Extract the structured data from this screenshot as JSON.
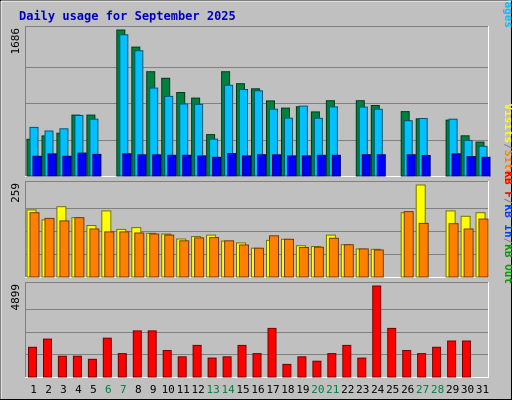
{
  "chart_data": {
    "type": "bar",
    "title": "Daily usage for September 2025",
    "categories": [
      "1",
      "2",
      "3",
      "4",
      "5",
      "6",
      "7",
      "8",
      "9",
      "10",
      "11",
      "12",
      "13",
      "14",
      "15",
      "16",
      "17",
      "18",
      "19",
      "20",
      "21",
      "22",
      "23",
      "24",
      "25",
      "26",
      "27",
      "28",
      "29",
      "30",
      "31"
    ],
    "weekend_days": [
      "6",
      "7",
      "13",
      "14",
      "20",
      "21",
      "27",
      "28"
    ],
    "panels": [
      {
        "id": "hits",
        "max_label": "1686",
        "ylim": [
          0,
          1686
        ],
        "right_labels": [
          {
            "text": "Hits",
            "color": "#008040"
          },
          {
            "text": "/",
            "color": "#808080"
          },
          {
            "text": "Files",
            "color": "#0040ff"
          },
          {
            "text": "/",
            "color": "#808080"
          },
          {
            "text": "Pages",
            "color": "#00c0ff"
          }
        ],
        "series": [
          {
            "name": "Hits",
            "color": "#008040",
            "values": [
              424,
              463,
              494,
              703,
              703,
              0,
              1686,
              1488,
              1205,
              1128,
              964,
              900,
              478,
              1205,
              1066,
              1007,
              867,
              784,
              800,
              740,
              869,
              0,
              869,
              814,
              0,
              744,
              660,
              0,
              646,
              464,
              392
            ]
          },
          {
            "name": "Files",
            "color": "#00c0ff",
            "values": [
              561,
              520,
              545,
              699,
              656,
              0,
              1631,
              1447,
              1015,
              919,
              832,
              827,
              425,
              1047,
              999,
              984,
              771,
              667,
              807,
              666,
              798,
              0,
              796,
              770,
              0,
              639,
              664,
              0,
              656,
              411,
              342
            ]
          },
          {
            "name": "Pages",
            "color": "#0000ff",
            "values": [
              228,
              256,
              228,
              265,
              249,
              0,
              256,
              245,
              245,
              239,
              239,
              232,
              216,
              260,
              232,
              246,
              245,
              232,
              232,
              239,
              239,
              0,
              246,
              246,
              0,
              246,
              237,
              0,
              256,
              224,
              216
            ]
          }
        ]
      },
      {
        "id": "visits",
        "max_label": "259",
        "ylim": [
          0,
          259
        ],
        "right_labels": [
          {
            "text": "Visits",
            "color": "#ffff00"
          },
          {
            "text": "/",
            "color": "#808080"
          },
          {
            "text": "Sites",
            "color": "#ff8000"
          }
        ],
        "series": [
          {
            "name": "Visits",
            "color": "#ffff00",
            "values": [
              189,
              161,
              198,
              167,
              145,
              186,
              134,
              139,
              123,
              121,
              107,
              114,
              118,
              101,
              96,
              81,
              103,
              106,
              88,
              86,
              118,
              91,
              79,
              78,
              0,
              181,
              259,
              0,
              186,
              171,
              181
            ]
          },
          {
            "name": "Sites",
            "color": "#ff8000",
            "values": [
              181,
              165,
              158,
              167,
              135,
              127,
              127,
              124,
              121,
              118,
              102,
              110,
              111,
              102,
              90,
              81,
              116,
              106,
              83,
              84,
              109,
              91,
              79,
              76,
              0,
              184,
              151,
              0,
              150,
              135,
              163
            ]
          }
        ]
      },
      {
        "id": "kbytes",
        "max_label": "4899",
        "ylim": [
          0,
          4899
        ],
        "right_labels": [
          {
            "text": "KB F",
            "color": "#ff0000"
          },
          {
            "text": "/",
            "color": "#808080"
          },
          {
            "text": "KB In",
            "color": "#0040ff"
          },
          {
            "text": "/",
            "color": "#808080"
          },
          {
            "text": "KB Out",
            "color": "#00a000"
          }
        ],
        "series": [
          {
            "name": "KB F",
            "color": "#ff0000",
            "values": [
              1598,
              2040,
              1122,
              1122,
              952,
              2088,
              1258,
              2482,
              2482,
              1428,
              1088,
              1700,
              1020,
              1088,
              1700,
              1258,
              2618,
              680,
              1088,
              850,
              1258,
              1700,
              1020,
              4899,
              2618,
              1428,
              1258,
              1598,
              1938,
              1938,
              0
            ]
          }
        ]
      }
    ],
    "bar_widths": [
      1,
      1,
      0.85
    ]
  }
}
